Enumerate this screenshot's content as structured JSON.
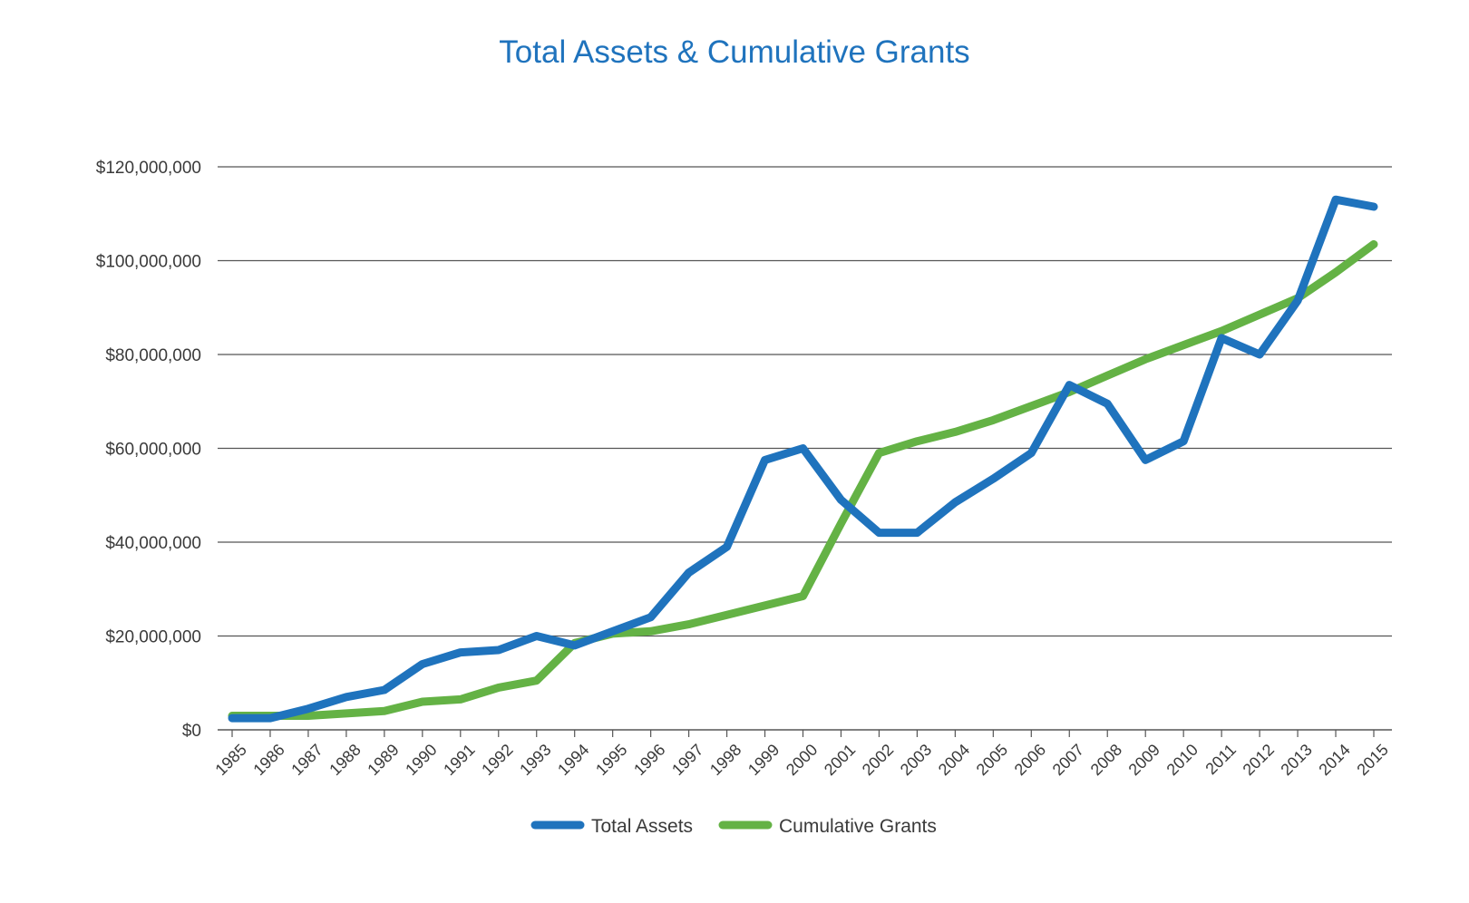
{
  "chart_data": {
    "type": "line",
    "title": "Total Assets & Cumulative Grants",
    "xlabel": "",
    "ylabel": "",
    "ylim": [
      0,
      120000000
    ],
    "yticks": [
      0,
      20000000,
      40000000,
      60000000,
      80000000,
      100000000,
      120000000
    ],
    "ytick_labels": [
      "$0",
      "$20,000,000",
      "$40,000,000",
      "$60,000,000",
      "$80,000,000",
      "$100,000,000",
      "$120,000,000"
    ],
    "grid": true,
    "legend_position": "bottom",
    "categories": [
      "1985",
      "1986",
      "1987",
      "1988",
      "1989",
      "1990",
      "1991",
      "1992",
      "1993",
      "1994",
      "1995",
      "1996",
      "1997",
      "1998",
      "1999",
      "2000",
      "2001",
      "2002",
      "2003",
      "2004",
      "2005",
      "2006",
      "2007",
      "2008",
      "2009",
      "2010",
      "2011",
      "2012",
      "2013",
      "2014",
      "2015"
    ],
    "series": [
      {
        "name": "Total Assets",
        "color": "#1f73bd",
        "values": [
          2500000,
          2500000,
          4500000,
          7000000,
          8500000,
          14000000,
          16500000,
          17000000,
          20000000,
          18000000,
          21000000,
          24000000,
          33500000,
          39000000,
          57500000,
          60000000,
          49000000,
          42000000,
          42000000,
          48500000,
          53500000,
          59000000,
          73500000,
          69500000,
          57500000,
          61500000,
          83500000,
          80000000,
          91500000,
          113000000,
          111500000
        ]
      },
      {
        "name": "Cumulative Grants",
        "color": "#64b245",
        "values": [
          3000000,
          3000000,
          3000000,
          3500000,
          4000000,
          6000000,
          6500000,
          9000000,
          10500000,
          18500000,
          20500000,
          21000000,
          22500000,
          24500000,
          26500000,
          28500000,
          44000000,
          59000000,
          61500000,
          63500000,
          66000000,
          69000000,
          72000000,
          75500000,
          79000000,
          82000000,
          85000000,
          88500000,
          92000000,
          97500000,
          103500000
        ]
      }
    ]
  }
}
